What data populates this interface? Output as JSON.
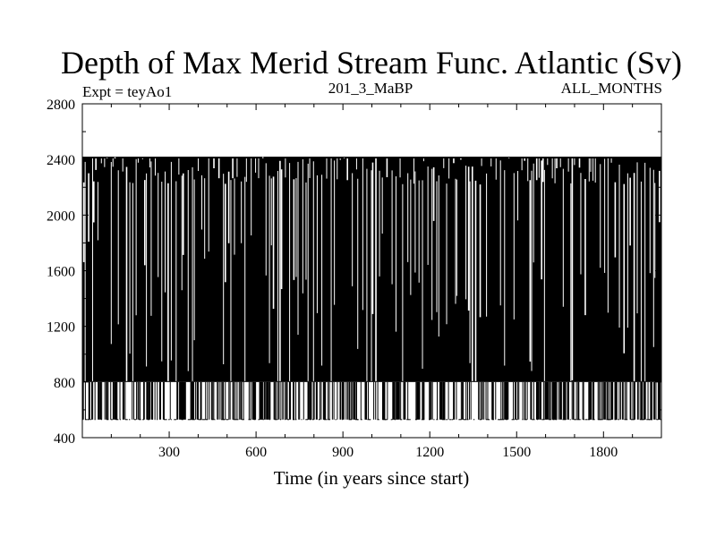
{
  "chart_data": {
    "type": "line",
    "title": "Depth of Max Merid Stream Func. Atlantic (Sv)",
    "subtitle_left": "Expt = teyAo1",
    "subtitle_center": "201_3_MaBP",
    "subtitle_right": "ALL_MONTHS",
    "xlabel": "Time (in years since start)",
    "ylabel": "",
    "xlim": [
      0,
      2000
    ],
    "ylim": [
      400,
      2800
    ],
    "x_ticks": [
      300,
      600,
      900,
      1200,
      1500,
      1800
    ],
    "y_ticks": [
      400,
      800,
      1200,
      1600,
      2000,
      2400,
      2800
    ],
    "grid": false,
    "series": [
      {
        "color": "#000000",
        "x_start": 0,
        "x_end": 2000,
        "levels": [
          530,
          800,
          2420
        ],
        "dominant_range": [
          800,
          2420
        ],
        "low_excursion_value": 530,
        "high_level_value": 2420
      }
    ]
  }
}
